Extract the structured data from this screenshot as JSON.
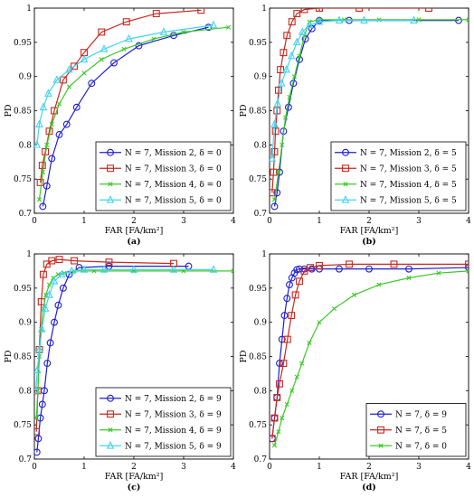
{
  "chart_data": [
    {
      "type": "line",
      "panel_label": "(a)",
      "xlabel": "FAR [FA/km²]",
      "ylabel": "PD",
      "xlim": [
        0,
        4
      ],
      "ylim": [
        0.7,
        1.0
      ],
      "xticks": [
        "0",
        "1",
        "2",
        "3",
        "4"
      ],
      "yticks": [
        "0.7",
        "0.75",
        "0.8",
        "0.85",
        "0.9",
        "0.95",
        "1"
      ],
      "legend_position": "bottom-right",
      "series": [
        {
          "name": "N = 7, Mission 2, δ = 0",
          "color": "#1f1fd6",
          "marker": "circle",
          "x": [
            0.17,
            0.25,
            0.35,
            0.5,
            0.65,
            0.85,
            1.15,
            1.6,
            2.1,
            2.8,
            3.5
          ],
          "y": [
            0.71,
            0.74,
            0.78,
            0.815,
            0.83,
            0.855,
            0.89,
            0.92,
            0.945,
            0.96,
            0.972
          ]
        },
        {
          "name": "N = 7, Mission 3, δ = 0",
          "color": "#c8281e",
          "marker": "square",
          "x": [
            0.12,
            0.16,
            0.22,
            0.3,
            0.4,
            0.58,
            0.8,
            1.0,
            1.35,
            1.85,
            2.45,
            3.35
          ],
          "y": [
            0.745,
            0.77,
            0.79,
            0.82,
            0.85,
            0.895,
            0.915,
            0.935,
            0.965,
            0.98,
            0.992,
            0.997
          ]
        },
        {
          "name": "N = 7, Mission 4, δ = 0",
          "color": "#3cc828",
          "marker": "x",
          "x": [
            0.1,
            0.17,
            0.25,
            0.35,
            0.5,
            0.7,
            1.0,
            1.35,
            1.8,
            2.4,
            3.0,
            3.9
          ],
          "y": [
            0.72,
            0.76,
            0.8,
            0.83,
            0.86,
            0.885,
            0.905,
            0.925,
            0.94,
            0.955,
            0.965,
            0.972
          ]
        },
        {
          "name": "N = 7, Mission 5, δ = 0",
          "color": "#46d2f0",
          "marker": "triangle",
          "x": [
            0.05,
            0.1,
            0.18,
            0.28,
            0.45,
            0.7,
            1.0,
            1.4,
            1.9,
            2.6,
            3.6
          ],
          "y": [
            0.8,
            0.83,
            0.855,
            0.875,
            0.895,
            0.91,
            0.925,
            0.94,
            0.955,
            0.965,
            0.975
          ]
        }
      ]
    },
    {
      "type": "line",
      "panel_label": "(b)",
      "xlabel": "FAR [FA/km²]",
      "ylabel": "PD",
      "xlim": [
        0,
        4
      ],
      "ylim": [
        0.7,
        1.0
      ],
      "xticks": [
        "0",
        "1",
        "2",
        "3",
        "4"
      ],
      "yticks": [
        "0.7",
        "0.75",
        "0.8",
        "0.85",
        "0.9",
        "0.95",
        "1"
      ],
      "legend_position": "bottom-right",
      "series": [
        {
          "name": "N = 7, Mission 2, δ = 5",
          "color": "#1f1fd6",
          "marker": "circle",
          "x": [
            0.1,
            0.15,
            0.2,
            0.28,
            0.38,
            0.48,
            0.6,
            0.72,
            0.85,
            1.0,
            1.6,
            3.8
          ],
          "y": [
            0.71,
            0.73,
            0.76,
            0.82,
            0.855,
            0.89,
            0.925,
            0.955,
            0.97,
            0.982,
            0.982,
            0.982
          ]
        },
        {
          "name": "N = 7, Mission 3, δ = 5",
          "color": "#c8281e",
          "marker": "square",
          "x": [
            0.05,
            0.08,
            0.1,
            0.12,
            0.15,
            0.18,
            0.22,
            0.28,
            0.35,
            0.45,
            0.55,
            0.7,
            1.0,
            1.8,
            3.2
          ],
          "y": [
            0.73,
            0.76,
            0.79,
            0.82,
            0.85,
            0.88,
            0.91,
            0.935,
            0.96,
            0.98,
            0.992,
            0.998,
            1.0,
            1.0,
            1.0
          ]
        },
        {
          "name": "N = 7, Mission 4, δ = 5",
          "color": "#3cc828",
          "marker": "x",
          "x": [
            0.1,
            0.18,
            0.25,
            0.32,
            0.4,
            0.5,
            0.6,
            0.7,
            0.8,
            1.0,
            1.5,
            2.2,
            3.0,
            4.0
          ],
          "y": [
            0.72,
            0.76,
            0.8,
            0.84,
            0.87,
            0.9,
            0.93,
            0.96,
            0.98,
            0.983,
            0.983,
            0.983,
            0.983,
            0.983
          ]
        },
        {
          "name": "N = 7, Mission 5, δ = 5",
          "color": "#46d2f0",
          "marker": "triangle",
          "x": [
            0.05,
            0.1,
            0.16,
            0.24,
            0.34,
            0.44,
            0.55,
            0.66,
            0.8,
            1.0,
            1.4,
            1.9,
            2.9
          ],
          "y": [
            0.78,
            0.83,
            0.86,
            0.89,
            0.91,
            0.93,
            0.95,
            0.965,
            0.975,
            0.98,
            0.982,
            0.982,
            0.982
          ]
        }
      ]
    },
    {
      "type": "line",
      "panel_label": "(c)",
      "xlabel": "FAR [FA/km²]",
      "ylabel": "PD",
      "xlim": [
        0,
        4
      ],
      "ylim": [
        0.7,
        1.0
      ],
      "xticks": [
        "0",
        "1",
        "2",
        "3",
        "4"
      ],
      "yticks": [
        "0.7",
        "0.75",
        "0.8",
        "0.85",
        "0.9",
        "0.95",
        "1"
      ],
      "legend_position": "bottom-right",
      "series": [
        {
          "name": "N = 7, Mission 2, δ = 9",
          "color": "#1f1fd6",
          "marker": "circle",
          "x": [
            0.05,
            0.08,
            0.12,
            0.16,
            0.2,
            0.26,
            0.32,
            0.4,
            0.48,
            0.58,
            0.7,
            0.9,
            1.5,
            3.1
          ],
          "y": [
            0.71,
            0.73,
            0.76,
            0.78,
            0.8,
            0.84,
            0.87,
            0.9,
            0.925,
            0.95,
            0.97,
            0.98,
            0.982,
            0.982
          ]
        },
        {
          "name": "N = 7, Mission 3, δ = 9",
          "color": "#c8281e",
          "marker": "square",
          "x": [
            0.04,
            0.07,
            0.1,
            0.14,
            0.18,
            0.25,
            0.35,
            0.5,
            0.8,
            1.5,
            2.8
          ],
          "y": [
            0.74,
            0.8,
            0.86,
            0.93,
            0.97,
            0.985,
            0.99,
            0.992,
            0.99,
            0.988,
            0.986
          ]
        },
        {
          "name": "N = 7, Mission 4, δ = 9",
          "color": "#3cc828",
          "marker": "x",
          "x": [
            0.04,
            0.07,
            0.1,
            0.14,
            0.18,
            0.23,
            0.3,
            0.38,
            0.48,
            0.6,
            0.8,
            1.2,
            2.0,
            3.0,
            4.0
          ],
          "y": [
            0.76,
            0.8,
            0.85,
            0.89,
            0.92,
            0.94,
            0.955,
            0.965,
            0.97,
            0.972,
            0.975,
            0.975,
            0.975,
            0.975,
            0.975
          ]
        },
        {
          "name": "N = 7, Mission 5, δ = 9",
          "color": "#46d2f0",
          "marker": "triangle",
          "x": [
            0.03,
            0.06,
            0.1,
            0.15,
            0.22,
            0.3,
            0.4,
            0.55,
            0.75,
            1.0,
            1.4,
            2.0,
            2.8,
            3.6
          ],
          "y": [
            0.8,
            0.83,
            0.86,
            0.89,
            0.92,
            0.94,
            0.96,
            0.97,
            0.975,
            0.977,
            0.977,
            0.977,
            0.977,
            0.977
          ]
        }
      ]
    },
    {
      "type": "line",
      "panel_label": "(d)",
      "xlabel": "FAR [FA/km²]",
      "ylabel": "PD",
      "xlim": [
        0,
        4
      ],
      "ylim": [
        0.7,
        1.0
      ],
      "xticks": [
        "0",
        "1",
        "2",
        "3",
        "4"
      ],
      "yticks": [
        "0.7",
        "0.75",
        "0.8",
        "0.85",
        "0.9",
        "0.95",
        "1"
      ],
      "legend_position": "bottom-right",
      "series": [
        {
          "name": "N = 7, δ = 9",
          "color": "#1f1fd6",
          "marker": "circle",
          "x": [
            0.05,
            0.1,
            0.15,
            0.2,
            0.25,
            0.3,
            0.35,
            0.4,
            0.45,
            0.5,
            0.55,
            0.6,
            0.7,
            0.85,
            1.0,
            1.4,
            2.0,
            2.8,
            4.0
          ],
          "y": [
            0.73,
            0.76,
            0.79,
            0.84,
            0.875,
            0.91,
            0.935,
            0.955,
            0.965,
            0.972,
            0.977,
            0.978,
            0.978,
            0.978,
            0.978,
            0.978,
            0.978,
            0.978,
            0.98
          ]
        },
        {
          "name": "N = 7, δ = 5",
          "color": "#c8281e",
          "marker": "square",
          "x": [
            0.05,
            0.1,
            0.15,
            0.2,
            0.28,
            0.36,
            0.44,
            0.52,
            0.6,
            0.7,
            0.82,
            1.0,
            1.6,
            2.5,
            4.0
          ],
          "y": [
            0.73,
            0.76,
            0.79,
            0.81,
            0.84,
            0.875,
            0.91,
            0.94,
            0.96,
            0.975,
            0.98,
            0.983,
            0.985,
            0.985,
            0.985
          ]
        },
        {
          "name": "N = 7, δ = 0",
          "color": "#3cc828",
          "marker": "x",
          "x": [
            0.1,
            0.18,
            0.25,
            0.35,
            0.45,
            0.55,
            0.65,
            0.8,
            1.0,
            1.3,
            1.7,
            2.2,
            2.8,
            3.4,
            4.0
          ],
          "y": [
            0.72,
            0.74,
            0.76,
            0.78,
            0.8,
            0.82,
            0.84,
            0.87,
            0.9,
            0.92,
            0.94,
            0.955,
            0.965,
            0.972,
            0.975
          ]
        }
      ]
    }
  ]
}
